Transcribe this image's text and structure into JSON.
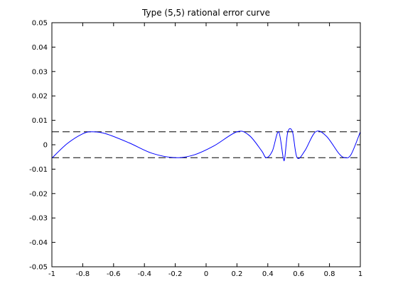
{
  "chart_data": {
    "type": "line",
    "title": "Type (5,5) rational error curve",
    "xlabel": "",
    "ylabel": "",
    "xlim": [
      -1,
      1
    ],
    "ylim": [
      -0.05,
      0.05
    ],
    "x_ticks": [
      "-1",
      "-0.8",
      "-0.6",
      "-0.4",
      "-0.2",
      "0",
      "0.2",
      "0.4",
      "0.6",
      "0.8",
      "1"
    ],
    "y_ticks": [
      "0.05",
      "0.04",
      "0.03",
      "0.02",
      "0.01",
      "0",
      "-0.01",
      "-0.02",
      "-0.03",
      "-0.04",
      "-0.05"
    ],
    "grid": false,
    "series": [
      {
        "color": "#0000ff",
        "x": [
          -1,
          -0.9,
          -0.8,
          -0.74,
          -0.65,
          -0.5,
          -0.35,
          -0.2,
          -0.08,
          0.05,
          0.2,
          0.28,
          0.36,
          0.39,
          0.43,
          0.47,
          0.5,
          0.51,
          0.53,
          0.56,
          0.59,
          0.64,
          0.71,
          0.78,
          0.86,
          0.9,
          0.94,
          1
        ],
        "y": [
          -0.0055,
          0.0005,
          0.0045,
          0.0053,
          0.0045,
          0.0008,
          -0.0035,
          -0.0053,
          -0.0042,
          -0.0005,
          0.0053,
          0.0038,
          -0.0025,
          -0.0053,
          -0.0025,
          0.0053,
          -0.0053,
          -0.0053,
          0.0053,
          0.0053,
          -0.0053,
          -0.0025,
          0.0053,
          0.0035,
          -0.0035,
          -0.0053,
          -0.004,
          0.0053
        ]
      }
    ],
    "reference_lines": [
      {
        "y": 0.0053,
        "style": "dashed",
        "color": "#000000"
      },
      {
        "y": -0.0053,
        "style": "dashed",
        "color": "#000000"
      }
    ]
  }
}
